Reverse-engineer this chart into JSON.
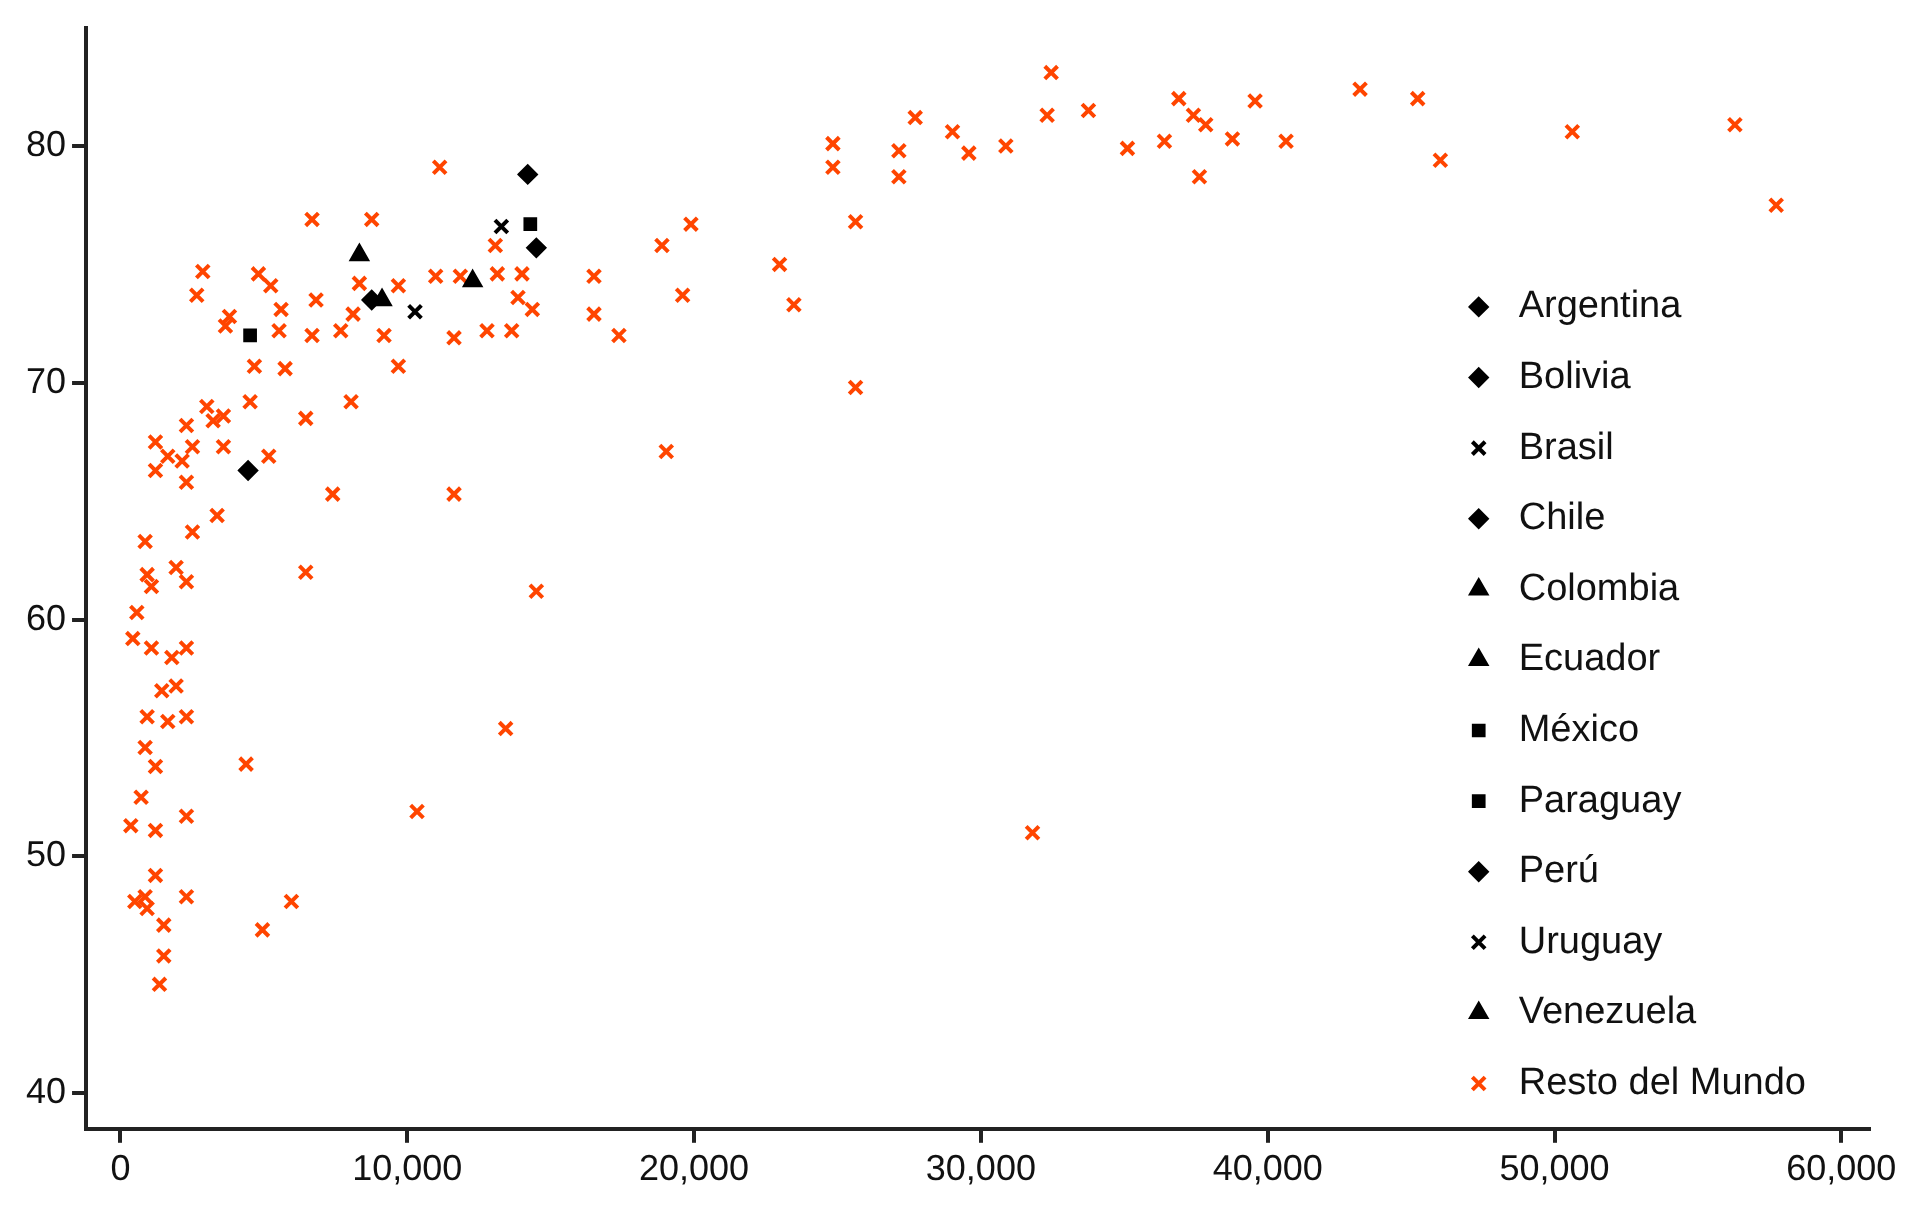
{
  "chart_data": {
    "type": "scatter",
    "xlim": [
      -1200,
      61000
    ],
    "xticks": [
      {
        "value": 0,
        "label": "0"
      },
      {
        "value": 10000,
        "label": "10,000"
      },
      {
        "value": 20000,
        "label": "20,000"
      },
      {
        "value": 30000,
        "label": "30,000"
      },
      {
        "value": 40000,
        "label": "40,000"
      },
      {
        "value": 50000,
        "label": "50,000"
      },
      {
        "value": 60000,
        "label": "60,000"
      }
    ],
    "ylim": [
      38.5,
      85
    ],
    "yticks": [
      40,
      50,
      60,
      70,
      80
    ],
    "grid": false,
    "legend": "right",
    "series": [
      {
        "name": "Argentina",
        "color": "#000000",
        "marker": "diamond",
        "x": [
          14500
        ],
        "values": [
          75.7
        ]
      },
      {
        "name": "Bolivia",
        "color": "#000000",
        "marker": "diamond",
        "x": [
          4450
        ],
        "values": [
          66.3
        ]
      },
      {
        "name": "Brasil",
        "color": "#000000",
        "marker": "cross",
        "x": [
          10270
        ],
        "values": [
          73.0
        ]
      },
      {
        "name": "Chile",
        "color": "#000000",
        "marker": "diamond",
        "x": [
          14200
        ],
        "values": [
          78.8
        ]
      },
      {
        "name": "Colombia",
        "color": "#000000",
        "marker": "triangle",
        "x": [
          12280
        ],
        "values": [
          74.3
        ]
      },
      {
        "name": "Ecuador",
        "color": "#000000",
        "marker": "triangle",
        "x": [
          8330
        ],
        "values": [
          75.4
        ]
      },
      {
        "name": "México",
        "color": "#000000",
        "marker": "square",
        "x": [
          14290
        ],
        "values": [
          76.7
        ]
      },
      {
        "name": "Paraguay",
        "color": "#000000",
        "marker": "square",
        "x": [
          4520
        ],
        "values": [
          72.0
        ]
      },
      {
        "name": "Perú",
        "color": "#000000",
        "marker": "diamond",
        "x": [
          8760
        ],
        "values": [
          73.5
        ]
      },
      {
        "name": "Uruguay",
        "color": "#000000",
        "marker": "cross",
        "x": [
          13280
        ],
        "values": [
          76.6
        ]
      },
      {
        "name": "Venezuela",
        "color": "#000000",
        "marker": "triangle",
        "x": [
          9120
        ],
        "values": [
          73.5
        ]
      },
      {
        "name": "Resto del Mundo",
        "color": "#ff4500",
        "marker": "cross",
        "x": [
          11130,
          6680,
          8760,
          2870,
          2660,
          4810,
          5240,
          5600,
          6820,
          8330,
          9690,
          10990,
          11850,
          13070,
          13140,
          14000,
          13860,
          14360,
          16510,
          16510,
          17380,
          18880,
          19890,
          19600,
          11630,
          12780,
          13640,
          9190,
          7680,
          6680,
          8110,
          9690,
          5740,
          4670,
          3660,
          3800,
          5530,
          8040,
          4520,
          6460,
          3010,
          2300,
          3230,
          3590,
          1220,
          2510,
          1650,
          2150,
          1220,
          2300,
          3590,
          5170,
          7400,
          11630,
          19030,
          3370,
          2510,
          860,
          930,
          1940,
          2300,
          6460,
          570,
          14500,
          1080,
          430,
          1080,
          1790,
          2300,
          1440,
          1940,
          930,
          1650,
          2300,
          860,
          1220,
          4380,
          13430,
          720,
          360,
          1220,
          2300,
          10340,
          1220,
          500,
          860,
          930,
          2300,
          5960,
          4950,
          1510,
          1510,
          1360,
          31800,
          25630,
          24840,
          24840,
          27140,
          27140,
          25630,
          22980,
          23480,
          27710,
          29010,
          29580,
          30870,
          32450,
          32310,
          33750,
          35110,
          36400,
          36900,
          37410,
          37840,
          37620,
          38770,
          39560,
          40640,
          43220,
          45230,
          46020,
          50620,
          56290,
          57730
        ],
        "values": [
          79.1,
          76.9,
          76.9,
          74.7,
          73.7,
          74.6,
          74.1,
          73.1,
          73.5,
          74.2,
          74.1,
          74.5,
          74.5,
          75.8,
          74.6,
          74.6,
          73.6,
          73.1,
          74.5,
          72.9,
          72.0,
          75.8,
          76.7,
          73.7,
          71.9,
          72.2,
          72.2,
          72.0,
          72.2,
          72.0,
          72.9,
          70.7,
          70.6,
          70.7,
          72.4,
          72.8,
          72.2,
          69.2,
          69.2,
          68.5,
          69.0,
          68.2,
          68.4,
          68.6,
          67.5,
          67.3,
          66.9,
          66.7,
          66.3,
          65.8,
          67.3,
          66.9,
          65.3,
          65.3,
          67.1,
          64.4,
          63.7,
          63.3,
          61.9,
          62.2,
          61.6,
          62.0,
          60.3,
          61.2,
          61.4,
          59.2,
          58.8,
          58.4,
          58.8,
          57.0,
          57.2,
          55.9,
          55.7,
          55.9,
          54.6,
          53.8,
          53.9,
          55.4,
          52.5,
          51.3,
          51.1,
          51.7,
          51.9,
          49.2,
          48.1,
          48.3,
          47.8,
          48.3,
          48.1,
          46.9,
          47.1,
          45.8,
          44.6,
          51.0,
          69.8,
          80.1,
          79.1,
          79.8,
          78.7,
          76.8,
          75.0,
          73.3,
          81.2,
          80.6,
          79.7,
          80.0,
          83.1,
          81.3,
          81.5,
          79.9,
          80.2,
          82.0,
          81.3,
          80.9,
          78.7,
          80.3,
          81.9,
          80.2,
          82.4,
          82.0,
          79.4,
          80.6,
          80.9,
          77.5
        ]
      }
    ]
  }
}
